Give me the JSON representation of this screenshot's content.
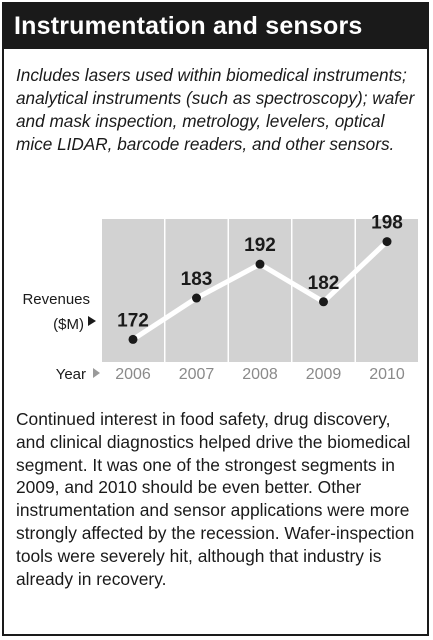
{
  "title": "Instrumentation and sensors",
  "intro": "Includes lasers used within biomedical instruments; analytical instruments (such as spectroscopy); wafer and mask inspection, metrology, levelers, optical mice LIDAR, barcode readers, and other sensors.",
  "body": "Continued interest in food safety, drug discovery, and clinical diagnostics helped drive the biomedical segment. It was one of the strongest segments in 2009, and 2010 should be even better. Other instrumentation and sensor applications were more strongly affected by the recession. Wafer-inspection tools were severely hit, although that industry is already in recovery.",
  "chart_data": {
    "type": "line",
    "x": [
      "2006",
      "2007",
      "2008",
      "2009",
      "2010"
    ],
    "values": [
      172,
      183,
      192,
      182,
      198
    ],
    "data_labels": [
      "172",
      "183",
      "192",
      "182",
      "198"
    ],
    "ylabel_line1": "Revenues",
    "ylabel_line2": "($M)",
    "xlabel": "Year",
    "grid": true,
    "colors": {
      "plot_bg": "#d2d2d2",
      "line": "#ffffff",
      "marker": "#1a1a1a",
      "grid": "#ffffff",
      "tick_text": "#8a8a8a"
    }
  }
}
